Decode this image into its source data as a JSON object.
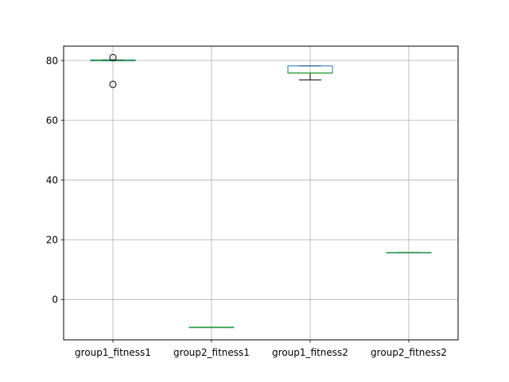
{
  "chart_data": {
    "type": "box",
    "title": "",
    "xlabel": "",
    "ylabel": "",
    "ylim": [
      -13.5,
      84.8
    ],
    "yticks": [
      0,
      20,
      40,
      60,
      80
    ],
    "grid": true,
    "categories": [
      "group1_fitness1",
      "group2_fitness1",
      "group1_fitness2",
      "group2_fitness2"
    ],
    "boxes": [
      {
        "category": "group1_fitness1",
        "whislo": 79.9,
        "q1": 79.9,
        "med": 80.1,
        "q3": 80.2,
        "whishi": 80.2,
        "fliers": [
          81.0,
          72.0
        ]
      },
      {
        "category": "group2_fitness1",
        "whislo": -9.3,
        "q1": -9.3,
        "med": -9.3,
        "q3": -9.3,
        "whishi": -9.3,
        "fliers": []
      },
      {
        "category": "group1_fitness2",
        "whislo": 73.5,
        "q1": 75.8,
        "med": 75.8,
        "q3": 78.2,
        "whishi": 78.2,
        "fliers": []
      },
      {
        "category": "group2_fitness2",
        "whislo": 15.7,
        "q1": 15.7,
        "med": 15.7,
        "q3": 15.7,
        "whishi": 15.7,
        "fliers": []
      }
    ],
    "colors": {
      "box": "#1f77b4",
      "median": "#2ca02c",
      "whisker": "#000000",
      "grid": "#b0b0b0",
      "flier": "#000000"
    }
  }
}
